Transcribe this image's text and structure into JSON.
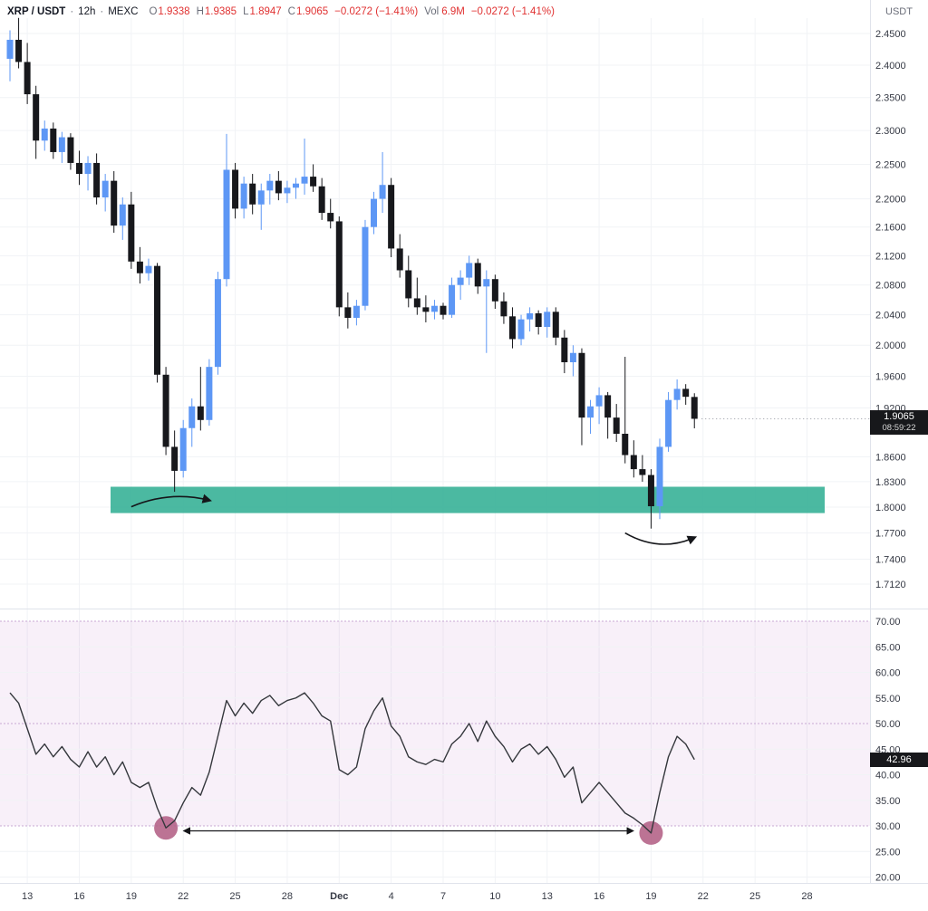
{
  "toolbar": {
    "symbol": "XRP / USDT",
    "sep": "·",
    "interval": "12h",
    "exchange": "MEXC",
    "ohlc": {
      "o_label": "O",
      "o_value": "1.9338",
      "h_label": "H",
      "h_value": "1.9385",
      "l_label": "L",
      "l_value": "1.8947",
      "c_label": "C",
      "c_value": "1.9065",
      "change": "−0.0272 (−1.41%)"
    },
    "volume_label": "Vol",
    "volume_value": "6.9M",
    "session_change": "−0.0272 (−1.41%)",
    "quote_currency": "USDT"
  },
  "price_axis": {
    "labels": [
      "2.4500",
      "2.4000",
      "2.3500",
      "2.3000",
      "2.2500",
      "2.2000",
      "2.1600",
      "2.1200",
      "2.0800",
      "2.0400",
      "2.0000",
      "1.9600",
      "1.9200",
      "1.8600",
      "1.8300",
      "1.8000",
      "1.7700",
      "1.7400",
      "1.7120"
    ],
    "last_price": "1.9065",
    "countdown": "08:59:22"
  },
  "oscillator_axis": {
    "labels": [
      "70.00",
      "65.00",
      "60.00",
      "55.00",
      "50.00",
      "45.00",
      "40.00",
      "35.00",
      "30.00",
      "25.00",
      "20.00"
    ],
    "last_value": "42.96"
  },
  "time_axis": {
    "labels": [
      {
        "text": "13"
      },
      {
        "text": "16"
      },
      {
        "text": "19"
      },
      {
        "text": "22"
      },
      {
        "text": "25"
      },
      {
        "text": "28"
      },
      {
        "text": "Dec",
        "bold": true
      },
      {
        "text": "4"
      },
      {
        "text": "7"
      },
      {
        "text": "10"
      },
      {
        "text": "13"
      },
      {
        "text": "16"
      },
      {
        "text": "19"
      },
      {
        "text": "22"
      },
      {
        "text": "25"
      },
      {
        "text": "28"
      }
    ]
  },
  "colors": {
    "up_candle": "#5d97f5",
    "down_candle": "#17181c",
    "support_zone": "#3cb399",
    "oscillator_band_fill": "#9c27b0",
    "oscillator_level_line": "#c9a8d4",
    "oscillator_line": "#34373c",
    "marker_circle": "#b25e84",
    "badge_bg": "#17181b",
    "negative_text": "#e03131",
    "grid": "#f1f3f6",
    "axis_border": "#e0e3eb",
    "axis_text": "#363a45"
  },
  "annotations": {
    "support_zone": {
      "price_top": 1.824,
      "price_bottom": 1.793,
      "color": "#3cb399"
    },
    "curved_arrows": [
      {
        "name": "bounce-arrow-left",
        "from_candle": 14,
        "to_candle": 23,
        "position": "on-zone"
      },
      {
        "name": "bounce-arrow-right",
        "from_candle": 71,
        "to_candle": 79,
        "position": "below-zone"
      }
    ],
    "low_circles": [
      {
        "name": "oscillator-low-circle-left",
        "at_index": 18
      },
      {
        "name": "oscillator-low-circle-right",
        "at_index": 74
      }
    ],
    "double_arrow": {
      "name": "divergence-arrow",
      "from_index": 18,
      "to_index": 74
    }
  },
  "chart_data": [
    {
      "type": "candlestick",
      "pane": "price",
      "symbol": "XRP / USDT",
      "interval": "12h",
      "exchange": "MEXC",
      "up_color": "#5d97f5",
      "down_color": "#17181c",
      "y_axis": {
        "scale": "log",
        "visible_labels": [
          "2.4500",
          "2.4000",
          "2.3500",
          "2.3000",
          "2.2500",
          "2.2000",
          "2.1600",
          "2.1200",
          "2.0800",
          "2.0400",
          "2.0000",
          "1.9600",
          "1.9200",
          "1.8600",
          "1.8300",
          "1.8000",
          "1.7700",
          "1.7400",
          "1.7120"
        ]
      },
      "x_axis": {
        "first_tick_candle_index": 2,
        "candles_per_tick": 6,
        "tick_labels": [
          "13",
          "16",
          "19",
          "22",
          "25",
          "28",
          "Dec",
          "4",
          "7",
          "10",
          "13",
          "16",
          "19",
          "22",
          "25",
          "28"
        ]
      },
      "last": {
        "open": 1.9338,
        "high": 1.9385,
        "low": 1.8947,
        "close": 1.9065,
        "change": -0.0272,
        "change_pct": -1.41,
        "volume": "6.9M"
      },
      "candles": [
        [
          2.41,
          2.455,
          2.375,
          2.44
        ],
        [
          2.44,
          2.475,
          2.395,
          2.405
        ],
        [
          2.405,
          2.435,
          2.34,
          2.355
        ],
        [
          2.355,
          2.368,
          2.258,
          2.285
        ],
        [
          2.285,
          2.315,
          2.27,
          2.303
        ],
        [
          2.303,
          2.312,
          2.258,
          2.268
        ],
        [
          2.268,
          2.298,
          2.252,
          2.29
        ],
        [
          2.29,
          2.296,
          2.242,
          2.252
        ],
        [
          2.252,
          2.27,
          2.22,
          2.236
        ],
        [
          2.236,
          2.262,
          2.212,
          2.252
        ],
        [
          2.252,
          2.266,
          2.192,
          2.202
        ],
        [
          2.202,
          2.236,
          2.182,
          2.226
        ],
        [
          2.226,
          2.24,
          2.152,
          2.162
        ],
        [
          2.162,
          2.202,
          2.142,
          2.192
        ],
        [
          2.192,
          2.21,
          2.102,
          2.112
        ],
        [
          2.112,
          2.132,
          2.082,
          2.096
        ],
        [
          2.096,
          2.116,
          2.086,
          2.106
        ],
        [
          2.106,
          2.11,
          1.952,
          1.962
        ],
        [
          1.962,
          1.972,
          1.862,
          1.872
        ],
        [
          1.872,
          1.892,
          1.818,
          1.843
        ],
        [
          1.843,
          1.905,
          1.835,
          1.895
        ],
        [
          1.895,
          1.932,
          1.872,
          1.922
        ],
        [
          1.922,
          1.972,
          1.892,
          1.905
        ],
        [
          1.905,
          1.982,
          1.898,
          1.972
        ],
        [
          1.972,
          2.098,
          1.962,
          2.088
        ],
        [
          2.088,
          2.295,
          2.078,
          2.242
        ],
        [
          2.242,
          2.252,
          2.172,
          2.186
        ],
        [
          2.186,
          2.232,
          2.172,
          2.222
        ],
        [
          2.222,
          2.236,
          2.178,
          2.192
        ],
        [
          2.192,
          2.222,
          2.156,
          2.212
        ],
        [
          2.212,
          2.236,
          2.192,
          2.226
        ],
        [
          2.226,
          2.24,
          2.198,
          2.208
        ],
        [
          2.208,
          2.226,
          2.194,
          2.216
        ],
        [
          2.216,
          2.23,
          2.2,
          2.222
        ],
        [
          2.222,
          2.288,
          2.206,
          2.232
        ],
        [
          2.232,
          2.25,
          2.21,
          2.218
        ],
        [
          2.218,
          2.23,
          2.17,
          2.18
        ],
        [
          2.18,
          2.2,
          2.158,
          2.168
        ],
        [
          2.168,
          2.175,
          2.038,
          2.05
        ],
        [
          2.05,
          2.07,
          2.022,
          2.036
        ],
        [
          2.036,
          2.06,
          2.026,
          2.052
        ],
        [
          2.052,
          2.17,
          2.046,
          2.16
        ],
        [
          2.16,
          2.21,
          2.15,
          2.2
        ],
        [
          2.2,
          2.268,
          2.18,
          2.22
        ],
        [
          2.22,
          2.23,
          2.118,
          2.13
        ],
        [
          2.13,
          2.15,
          2.09,
          2.1
        ],
        [
          2.1,
          2.12,
          2.05,
          2.062
        ],
        [
          2.062,
          2.09,
          2.04,
          2.05
        ],
        [
          2.05,
          2.066,
          2.03,
          2.044
        ],
        [
          2.044,
          2.06,
          2.034,
          2.052
        ],
        [
          2.052,
          2.056,
          2.034,
          2.04
        ],
        [
          2.04,
          2.09,
          2.036,
          2.08
        ],
        [
          2.08,
          2.1,
          2.06,
          2.09
        ],
        [
          2.09,
          2.12,
          2.08,
          2.11
        ],
        [
          2.11,
          2.116,
          2.068,
          2.078
        ],
        [
          2.078,
          2.1,
          1.99,
          2.088
        ],
        [
          2.088,
          2.094,
          2.048,
          2.058
        ],
        [
          2.058,
          2.07,
          2.028,
          2.038
        ],
        [
          2.038,
          2.05,
          1.996,
          2.008
        ],
        [
          2.008,
          2.04,
          2.0,
          2.034
        ],
        [
          2.034,
          2.05,
          2.018,
          2.042
        ],
        [
          2.042,
          2.046,
          2.014,
          2.024
        ],
        [
          2.024,
          2.05,
          2.01,
          2.044
        ],
        [
          2.044,
          2.05,
          2.0,
          2.01
        ],
        [
          2.01,
          2.02,
          1.964,
          1.978
        ],
        [
          1.978,
          2.0,
          1.96,
          1.99
        ],
        [
          1.99,
          1.996,
          1.874,
          1.908
        ],
        [
          1.908,
          1.93,
          1.888,
          1.922
        ],
        [
          1.922,
          1.946,
          1.9,
          1.936
        ],
        [
          1.936,
          1.94,
          1.882,
          1.908
        ],
        [
          1.908,
          1.925,
          1.878,
          1.888
        ],
        [
          1.888,
          1.985,
          1.852,
          1.862
        ],
        [
          1.862,
          1.88,
          1.835,
          1.845
        ],
        [
          1.845,
          1.862,
          1.83,
          1.838
        ],
        [
          1.838,
          1.845,
          1.775,
          1.801
        ],
        [
          1.801,
          1.882,
          1.786,
          1.872
        ],
        [
          1.872,
          1.94,
          1.866,
          1.93
        ],
        [
          1.93,
          1.956,
          1.918,
          1.944
        ],
        [
          1.944,
          1.95,
          1.924,
          1.934
        ],
        [
          1.9338,
          1.9385,
          1.8947,
          1.9065
        ]
      ]
    },
    {
      "type": "line",
      "name": "RSI-oscillator",
      "pane": "lower",
      "range": [
        20,
        70
      ],
      "overbought": 70,
      "midline": 50,
      "oversold": 30,
      "last_value": 42.96,
      "values": [
        56,
        54,
        49,
        44,
        46,
        43.5,
        45.5,
        43,
        41.5,
        44.5,
        41.5,
        43.5,
        40,
        42.5,
        38.5,
        37.5,
        38.5,
        33.5,
        29.6,
        31,
        34.5,
        37.5,
        36,
        40.5,
        47.5,
        54.5,
        51.5,
        54,
        52,
        54.5,
        55.5,
        53.5,
        54.5,
        55,
        56,
        54,
        51.5,
        50.5,
        41,
        40,
        41.5,
        49,
        52.5,
        55,
        49.5,
        47.5,
        43.5,
        42.5,
        42,
        43,
        42.5,
        46,
        47.5,
        50,
        46.5,
        50.5,
        47.5,
        45.5,
        42.5,
        45,
        46,
        44,
        45.5,
        43,
        39.5,
        41.5,
        34.5,
        36.5,
        38.5,
        36.5,
        34.5,
        32.5,
        31.5,
        30.2,
        28.6,
        36.5,
        43.5,
        47.5,
        46,
        42.96
      ]
    }
  ]
}
